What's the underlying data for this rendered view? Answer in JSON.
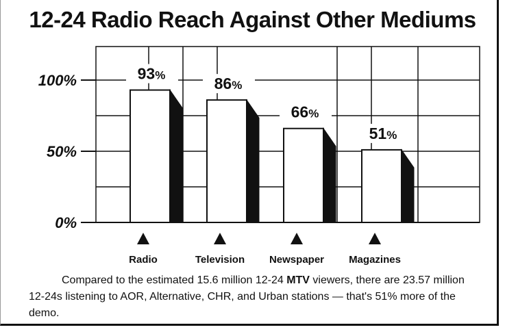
{
  "chart_data": {
    "type": "bar",
    "title": "12-24 Radio Reach Against Other Mediums",
    "categories": [
      "Radio",
      "Television",
      "Newspaper",
      "Magazines"
    ],
    "values": [
      93,
      86,
      66,
      51
    ],
    "value_labels": [
      "93%",
      "86%",
      "66%",
      "51%"
    ],
    "ytick_labels": [
      "0%",
      "50%",
      "100%"
    ],
    "yticks": [
      0,
      50,
      100
    ],
    "ylim": [
      0,
      100
    ],
    "grid": true,
    "xlabel": "",
    "ylabel": ""
  },
  "footnote": {
    "part1": "Compared to the estimated 15.6 million 12-24 ",
    "brand": "MTV",
    "part2": " viewers, there are 23.57 million 12-24s listening to AOR, Alternative, CHR, and Urban stations — that's 51% more of the demo."
  },
  "colors": {
    "ink": "#111111",
    "background": "#ffffff",
    "panel": "#ffffff",
    "bar": "#ffffff",
    "bar_side": "#111111"
  }
}
